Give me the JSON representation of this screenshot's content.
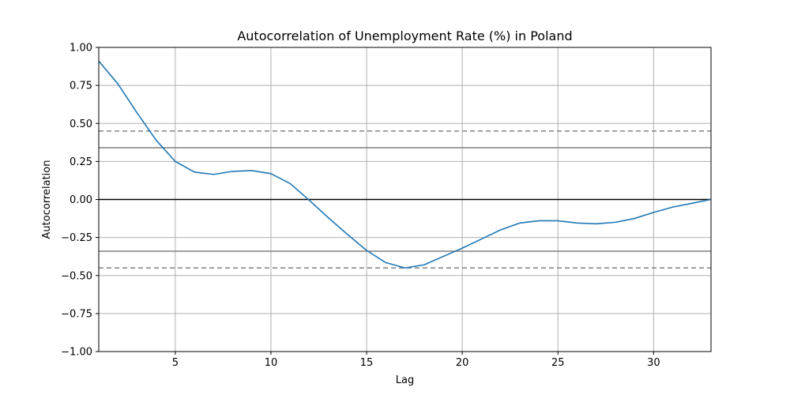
{
  "chart_data": {
    "type": "line",
    "title": "Autocorrelation of Unemployment Rate (%) in Poland",
    "xlabel": "Lag",
    "ylabel": "Autocorrelation",
    "xlim": [
      1,
      33
    ],
    "ylim": [
      -1.0,
      1.0
    ],
    "grid": true,
    "x_ticks": [
      5,
      10,
      15,
      20,
      25,
      30
    ],
    "x_tick_labels": [
      "5",
      "10",
      "15",
      "20",
      "25",
      "30"
    ],
    "y_ticks": [
      1.0,
      0.75,
      0.5,
      0.25,
      0.0,
      -0.25,
      -0.5,
      -0.75,
      -1.0
    ],
    "y_tick_labels": [
      "1.00",
      "0.75",
      "0.50",
      "0.25",
      "0.00",
      "−0.25",
      "−0.50",
      "−0.75",
      "−1.00"
    ],
    "series": [
      {
        "x": [
          1,
          2,
          3,
          4,
          5,
          6,
          7,
          8,
          9,
          10,
          11,
          12,
          13,
          14,
          15,
          16,
          17,
          18,
          19,
          20,
          21,
          22,
          23,
          24,
          25,
          26,
          27,
          28,
          29,
          30,
          31,
          32,
          33
        ],
        "values": [
          0.91,
          0.76,
          0.57,
          0.39,
          0.25,
          0.18,
          0.165,
          0.185,
          0.19,
          0.17,
          0.105,
          -0.005,
          -0.12,
          -0.23,
          -0.335,
          -0.415,
          -0.45,
          -0.43,
          -0.375,
          -0.32,
          -0.26,
          -0.2,
          -0.155,
          -0.14,
          -0.14,
          -0.155,
          -0.16,
          -0.15,
          -0.125,
          -0.085,
          -0.05,
          -0.025,
          0.0
        ],
        "color": "#1f77b4"
      }
    ],
    "confidence_bands": {
      "solid": [
        0.34,
        -0.34
      ],
      "dashed": [
        0.45,
        -0.45
      ],
      "color": "#808080"
    },
    "zero_line_color": "#000000"
  }
}
